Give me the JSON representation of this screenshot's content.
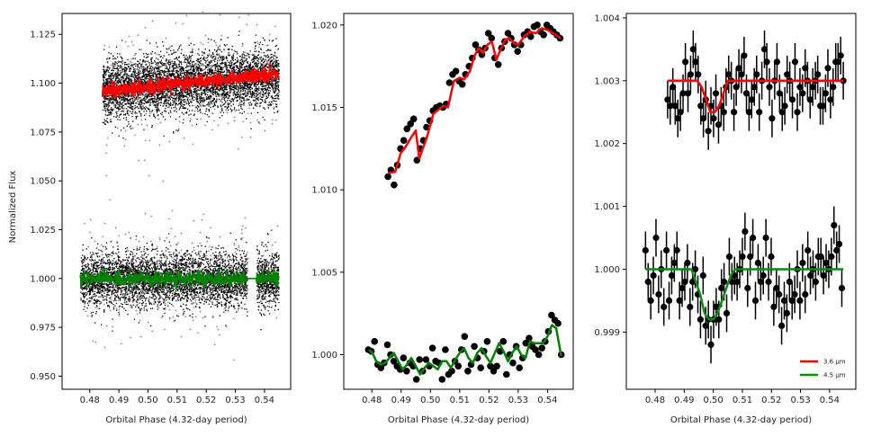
{
  "colors": {
    "data": "#000000",
    "model_36": "#ff0000",
    "model_45": "#008000",
    "model_45_right": "#118811"
  },
  "chart_data": [
    {
      "type": "scatter",
      "xlabel": "Orbital Phase (4.32-day period)",
      "ylabel": "Normalized Flux",
      "xlim": [
        0.4705,
        0.549
      ],
      "ylim": [
        0.9433,
        1.1357
      ],
      "x_ticks": [
        "0.48",
        "0.49",
        "0.50",
        "0.51",
        "0.52",
        "0.53",
        "0.54"
      ],
      "y_ticks": [
        "0.950",
        "0.975",
        "1.000",
        "1.025",
        "1.050",
        "1.075",
        "1.100",
        "1.125"
      ],
      "series": [
        {
          "band": "3.6 µm",
          "x_range": [
            0.4843,
            0.5448
          ],
          "raw_level": [
            1.097,
            1.104
          ],
          "raw_spread": 0.0135,
          "binned_level": [
            1.096,
            1.1045
          ],
          "binned_spread": 0.003
        },
        {
          "band": "4.5 µm",
          "x_range": [
            0.4767,
            0.5448
          ],
          "gap": [
            0.534,
            0.5372
          ],
          "raw_level": [
            1.0,
            1.0
          ],
          "raw_spread": 0.0125,
          "binned_level": [
            1.0,
            1.0
          ],
          "binned_spread": 0.003
        }
      ]
    },
    {
      "type": "scatter",
      "xlabel": "Orbital Phase (4.32-day period)",
      "xlim": [
        0.4704,
        0.5488
      ],
      "ylim": [
        0.9979,
        1.0207
      ],
      "x_ticks": [
        "0.48",
        "0.49",
        "0.50",
        "0.51",
        "0.52",
        "0.53",
        "0.54"
      ],
      "y_ticks": [
        "1.000",
        "1.005",
        "1.010",
        "1.015",
        "1.020"
      ],
      "series": [
        {
          "band": "3.6 µm",
          "x": [
            0.4855,
            0.4865,
            0.4876,
            0.4887,
            0.4898,
            0.4909,
            0.492,
            0.4932,
            0.4943,
            0.4954,
            0.4965,
            0.4976,
            0.4987,
            0.4998,
            0.5009,
            0.502,
            0.5032,
            0.5043,
            0.5054,
            0.5065,
            0.5076,
            0.5087,
            0.5098,
            0.5109,
            0.512,
            0.5132,
            0.5143,
            0.5154,
            0.5165,
            0.5176,
            0.5187,
            0.5198,
            0.5209,
            0.522,
            0.5232,
            0.5243,
            0.5254,
            0.5265,
            0.5276,
            0.5287,
            0.5298,
            0.5309,
            0.532,
            0.5332,
            0.5343,
            0.5354,
            0.5365,
            0.5376,
            0.5387,
            0.5398,
            0.5409,
            0.542,
            0.5432,
            0.5443
          ],
          "y": [
            1.0108,
            1.0112,
            1.0103,
            1.0115,
            1.0125,
            1.013,
            1.0137,
            1.014,
            1.0143,
            1.0118,
            1.0125,
            1.013,
            1.0138,
            1.0142,
            1.0148,
            1.015,
            1.0151,
            1.015,
            1.0152,
            1.0165,
            1.017,
            1.0172,
            1.0166,
            1.0164,
            1.017,
            1.0175,
            1.018,
            1.0188,
            1.0185,
            1.0182,
            1.0186,
            1.0195,
            1.0192,
            1.018,
            1.0176,
            1.0186,
            1.019,
            1.0195,
            1.0192,
            1.0188,
            1.0184,
            1.0188,
            1.0194,
            1.0196,
            1.0193,
            1.0199,
            1.02,
            1.0196,
            1.0194,
            1.02,
            1.0198,
            1.0196,
            1.0194,
            1.0192
          ],
          "model_x": [
            0.4855,
            0.488,
            0.4898,
            0.4915,
            0.4935,
            0.495,
            0.4962,
            0.499,
            0.501,
            0.503,
            0.5045,
            0.506,
            0.508,
            0.51,
            0.5115,
            0.5135,
            0.515,
            0.5165,
            0.518,
            0.5195,
            0.521,
            0.5225,
            0.524,
            0.5255,
            0.527,
            0.5285,
            0.53,
            0.532,
            0.534,
            0.536,
            0.538,
            0.54,
            0.542,
            0.5445
          ],
          "model_y": [
            1.011,
            1.0111,
            1.0122,
            1.0126,
            1.0132,
            1.0136,
            1.0119,
            1.0133,
            1.0146,
            1.0149,
            1.0151,
            1.015,
            1.0166,
            1.0168,
            1.0167,
            1.0172,
            1.0181,
            1.0186,
            1.0183,
            1.0188,
            1.019,
            1.0179,
            1.0185,
            1.0191,
            1.0192,
            1.0189,
            1.0188,
            1.0193,
            1.0196,
            1.0195,
            1.0198,
            1.0197,
            1.0195,
            1.0192
          ]
        },
        {
          "band": "4.5 µm",
          "x": [
            0.4788,
            0.4798,
            0.4809,
            0.482,
            0.4831,
            0.4842,
            0.4853,
            0.4864,
            0.4875,
            0.4886,
            0.4897,
            0.4908,
            0.4919,
            0.493,
            0.4941,
            0.4952,
            0.4963,
            0.4974,
            0.4985,
            0.4996,
            0.5007,
            0.5018,
            0.5029,
            0.504,
            0.5051,
            0.5062,
            0.5073,
            0.5084,
            0.5095,
            0.5106,
            0.5117,
            0.5128,
            0.5139,
            0.515,
            0.5161,
            0.5172,
            0.5183,
            0.5194,
            0.5205,
            0.5216,
            0.5227,
            0.5238,
            0.5249,
            0.526,
            0.5271,
            0.5282,
            0.5293,
            0.5304,
            0.5315,
            0.5326,
            0.5337,
            0.5348,
            0.5359,
            0.537,
            0.5381,
            0.5392,
            0.5403,
            0.5414,
            0.5425,
            0.5436,
            0.5447
          ],
          "y": [
            1.0003,
            1.0002,
            1.0008,
            0.9994,
            0.9992,
            0.9995,
            1.0006,
            1.0,
            0.9996,
            0.9993,
            0.9991,
            0.9998,
            0.999,
            0.9995,
            0.9993,
            0.9985,
            0.9997,
            0.999,
            0.9997,
            0.9993,
            1.0004,
            0.9996,
            0.9995,
            0.9985,
            1.0003,
            0.9988,
            0.999,
            0.9996,
            0.9993,
            1.0003,
            1.0011,
            0.999,
            0.9994,
            1.0005,
            0.9998,
            0.9992,
            1.0002,
            1.0008,
            0.9993,
            0.999,
            0.9993,
            1.0002,
            1.0008,
            0.9988,
            1.0,
            0.9995,
            1.0005,
            0.9992,
            0.9998,
            1.0007,
            1.001,
            1.0005,
            1.0003,
            1.0,
            1.0004,
            1.0008,
            1.0014,
            1.0024,
            1.0021,
            1.0019,
            1.0
          ],
          "model_x": [
            0.479,
            0.4802,
            0.4815,
            0.483,
            0.4845,
            0.486,
            0.4875,
            0.489,
            0.4905,
            0.492,
            0.4935,
            0.495,
            0.4965,
            0.498,
            0.4995,
            0.501,
            0.5025,
            0.504,
            0.5055,
            0.507,
            0.5085,
            0.51,
            0.5115,
            0.513,
            0.5145,
            0.516,
            0.5175,
            0.519,
            0.5205,
            0.522,
            0.5235,
            0.525,
            0.5265,
            0.528,
            0.5295,
            0.531,
            0.5325,
            0.534,
            0.5355,
            0.537,
            0.5385,
            0.54,
            0.5415,
            0.543,
            0.5447
          ],
          "model_y": [
            1.0003,
            1.0001,
            0.9996,
            0.9994,
            0.9995,
            0.9998,
            1.0001,
            0.9996,
            0.9991,
            0.9994,
            0.9998,
            0.9993,
            0.9988,
            0.9992,
            0.9995,
            0.9993,
            0.9991,
            0.9996,
            0.9996,
            0.9992,
            0.9997,
            1.0001,
            1.0004,
            0.9998,
            0.9995,
            1.0001,
            1.0004,
            0.9999,
            0.9995,
            1.0001,
            1.0007,
            1.0002,
            0.9996,
            1.0001,
            1.0005,
            1.0,
            0.9998,
            1.0008,
            1.0007,
            1.0007,
            1.0007,
            1.0011,
            1.0018,
            1.0016,
            0.9999
          ]
        }
      ]
    },
    {
      "type": "scatter",
      "xlabel": "Orbital Phase (4.32-day period)",
      "xlim": [
        0.4701,
        0.549
      ],
      "ylim": [
        0.99809,
        1.00407
      ],
      "x_ticks": [
        "0.48",
        "0.49",
        "0.50",
        "0.51",
        "0.52",
        "0.53",
        "0.54"
      ],
      "y_ticks": [
        "0.999",
        "1.000",
        "1.001",
        "1.002",
        "1.003",
        "1.004"
      ],
      "legend": {
        "placement": "lower-right",
        "entries": [
          "3.6 µm",
          "4.5 µm"
        ]
      },
      "error_bar": 0.0003,
      "series": [
        {
          "band": "3.6 µm",
          "x": [
            0.4843,
            0.4852,
            0.4861,
            0.4869,
            0.4878,
            0.4887,
            0.4896,
            0.4904,
            0.4913,
            0.4922,
            0.4931,
            0.4939,
            0.4948,
            0.4957,
            0.4966,
            0.4974,
            0.4983,
            0.4992,
            0.5001,
            0.5009,
            0.5018,
            0.5027,
            0.5036,
            0.5044,
            0.5053,
            0.5062,
            0.5071,
            0.5079,
            0.5088,
            0.5097,
            0.5106,
            0.5114,
            0.5123,
            0.5132,
            0.5141,
            0.5149,
            0.5158,
            0.5167,
            0.5176,
            0.5184,
            0.5193,
            0.5202,
            0.5211,
            0.5219,
            0.5228,
            0.5237,
            0.5246,
            0.5254,
            0.5263,
            0.5272,
            0.5281,
            0.5289,
            0.5298,
            0.5307,
            0.5316,
            0.5324,
            0.5333,
            0.5342,
            0.5351,
            0.5359,
            0.5368,
            0.5377,
            0.5386,
            0.5394,
            0.5403,
            0.5412,
            0.5421,
            0.5429,
            0.5438,
            0.5447
          ],
          "y": [
            1.0027,
            1.0026,
            1.0029,
            1.0026,
            1.0024,
            1.0025,
            1.0028,
            1.0033,
            1.0028,
            1.0031,
            1.0035,
            1.0033,
            1.0031,
            1.0026,
            1.0024,
            1.0027,
            1.0022,
            1.0026,
            1.0024,
            1.0028,
            1.0023,
            1.0026,
            1.0025,
            1.0029,
            1.0031,
            1.003,
            1.0025,
            1.0029,
            1.0032,
            1.0031,
            1.0034,
            1.0028,
            1.0025,
            1.0027,
            1.0029,
            1.0031,
            1.0025,
            1.003,
            1.0035,
            1.0033,
            1.0029,
            1.0024,
            1.003,
            1.0033,
            1.0028,
            1.0025,
            1.0026,
            1.0031,
            1.003,
            1.0027,
            1.0033,
            1.0025,
            1.0029,
            1.0028,
            1.0032,
            1.003,
            1.0027,
            1.0029,
            1.003,
            1.0031,
            1.0026,
            1.0026,
            1.0028,
            1.0032,
            1.0027,
            1.0029,
            1.0033,
            1.0033,
            1.0034,
            1.003
          ],
          "model_x": [
            0.4843,
            0.493,
            0.4945,
            0.496,
            0.4975,
            0.499,
            0.5005,
            0.502,
            0.5035,
            0.505,
            0.5065,
            0.508,
            0.5447
          ],
          "model_y": [
            1.003,
            1.003,
            1.003,
            1.0029,
            1.0027,
            1.0025,
            1.0025,
            1.0026,
            1.0028,
            1.003,
            1.003,
            1.003,
            1.003
          ]
        },
        {
          "band": "4.5 µm",
          "x": [
            0.4767,
            0.4776,
            0.4785,
            0.4794,
            0.4803,
            0.4812,
            0.4821,
            0.483,
            0.4839,
            0.4848,
            0.4857,
            0.4866,
            0.4875,
            0.4884,
            0.4893,
            0.4902,
            0.4911,
            0.492,
            0.4929,
            0.4938,
            0.4947,
            0.4956,
            0.4965,
            0.4974,
            0.4983,
            0.4992,
            0.5001,
            0.501,
            0.5019,
            0.5028,
            0.5037,
            0.5046,
            0.5055,
            0.5064,
            0.5073,
            0.5082,
            0.5091,
            0.51,
            0.5109,
            0.5118,
            0.5127,
            0.5136,
            0.5145,
            0.5154,
            0.5163,
            0.5172,
            0.5181,
            0.519,
            0.5199,
            0.5208,
            0.5217,
            0.5226,
            0.5235,
            0.5244,
            0.5253,
            0.5262,
            0.5271,
            0.528,
            0.5289,
            0.5298,
            0.5307,
            0.5316,
            0.5325,
            0.5334,
            0.5343,
            0.5352,
            0.5361,
            0.537,
            0.5379,
            0.5388,
            0.5397,
            0.5406,
            0.5415,
            0.5424,
            0.5433,
            0.5442
          ],
          "y": [
            1.0003,
            0.9998,
            0.9995,
            0.9999,
            1.0005,
            0.9996,
            1.0,
            0.9994,
            1.0003,
            0.9995,
            0.9999,
            1.0001,
            1.0003,
            0.9995,
            0.9997,
            0.9998,
            1.0001,
            0.9994,
            0.9998,
            1.0,
            0.9996,
            0.9992,
            0.9999,
            0.9991,
            0.9992,
            0.9988,
            0.9992,
            0.9994,
            0.9992,
            0.9997,
            0.9998,
            0.9993,
            1.0002,
            0.9998,
            0.9999,
            0.9998,
            1.0,
            1.0002,
            1.0006,
            0.9997,
            1.0002,
            1.0005,
            0.9995,
            1.0001,
            0.9998,
            0.9999,
            1.0005,
            0.9998,
            1.0002,
            0.9994,
            0.9997,
            0.9996,
            0.9991,
            0.9995,
            0.9993,
            0.9998,
            0.9995,
            0.9996,
            1.0,
            0.9995,
            1.0001,
            0.9996,
            1.0003,
            0.9999,
            1.0,
            0.9998,
            1.0002,
            1.0002,
            0.9999,
            1.0001,
            1.0,
            1.0002,
            1.0007,
            1.0003,
            1.0004,
            0.9997
          ],
          "model_x": [
            0.4767,
            0.491,
            0.4925,
            0.494,
            0.4955,
            0.497,
            0.4985,
            0.5,
            0.5015,
            0.503,
            0.5045,
            0.506,
            0.5075,
            0.509,
            0.5105,
            0.5447
          ],
          "model_y": [
            1.0,
            1.0,
            1.0,
            0.9998,
            0.9996,
            0.9993,
            0.9992,
            0.9992,
            0.9993,
            0.9995,
            0.9997,
            0.9999,
            1.0,
            1.0,
            1.0,
            1.0
          ]
        }
      ]
    }
  ]
}
